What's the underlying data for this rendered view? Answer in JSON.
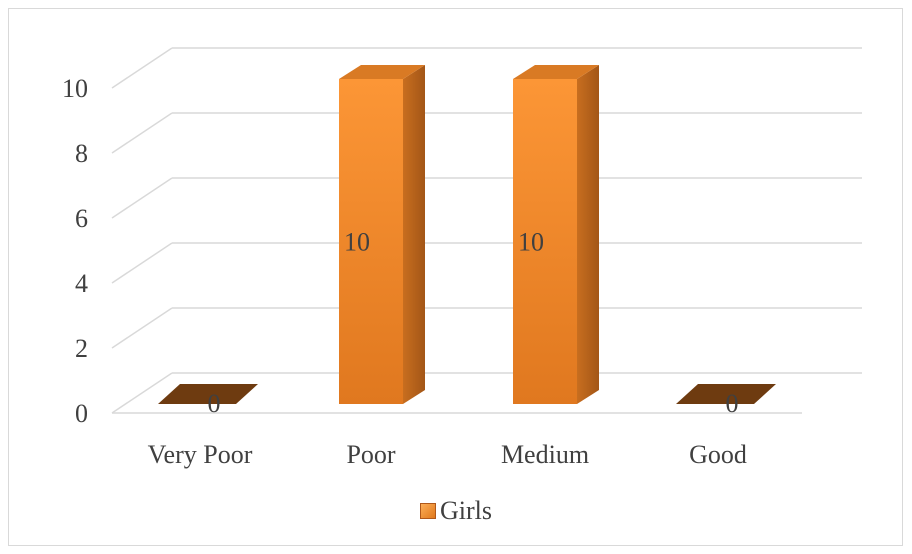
{
  "chart_data": {
    "type": "bar",
    "categories": [
      "Very Poor",
      "Poor",
      "Medium",
      "Good"
    ],
    "series": [
      {
        "name": "Girls",
        "values": [
          0,
          10,
          10,
          0
        ]
      }
    ],
    "ylim": [
      0,
      10
    ],
    "yticks": [
      "0",
      "2",
      "4",
      "6",
      "8",
      "10"
    ],
    "data_labels": [
      "0",
      "10",
      "10",
      "0"
    ],
    "title": "",
    "xlabel": "",
    "ylabel": "",
    "grid": true,
    "legend_position": "bottom",
    "style": "3d-column",
    "colors": {
      "bar_front": "#f58a2a",
      "bar_side": "#b8621a",
      "bar_top": "#d97a24",
      "zero_base": "#6e3b10",
      "grid": "#d9d9d9",
      "text": "#404040"
    }
  }
}
